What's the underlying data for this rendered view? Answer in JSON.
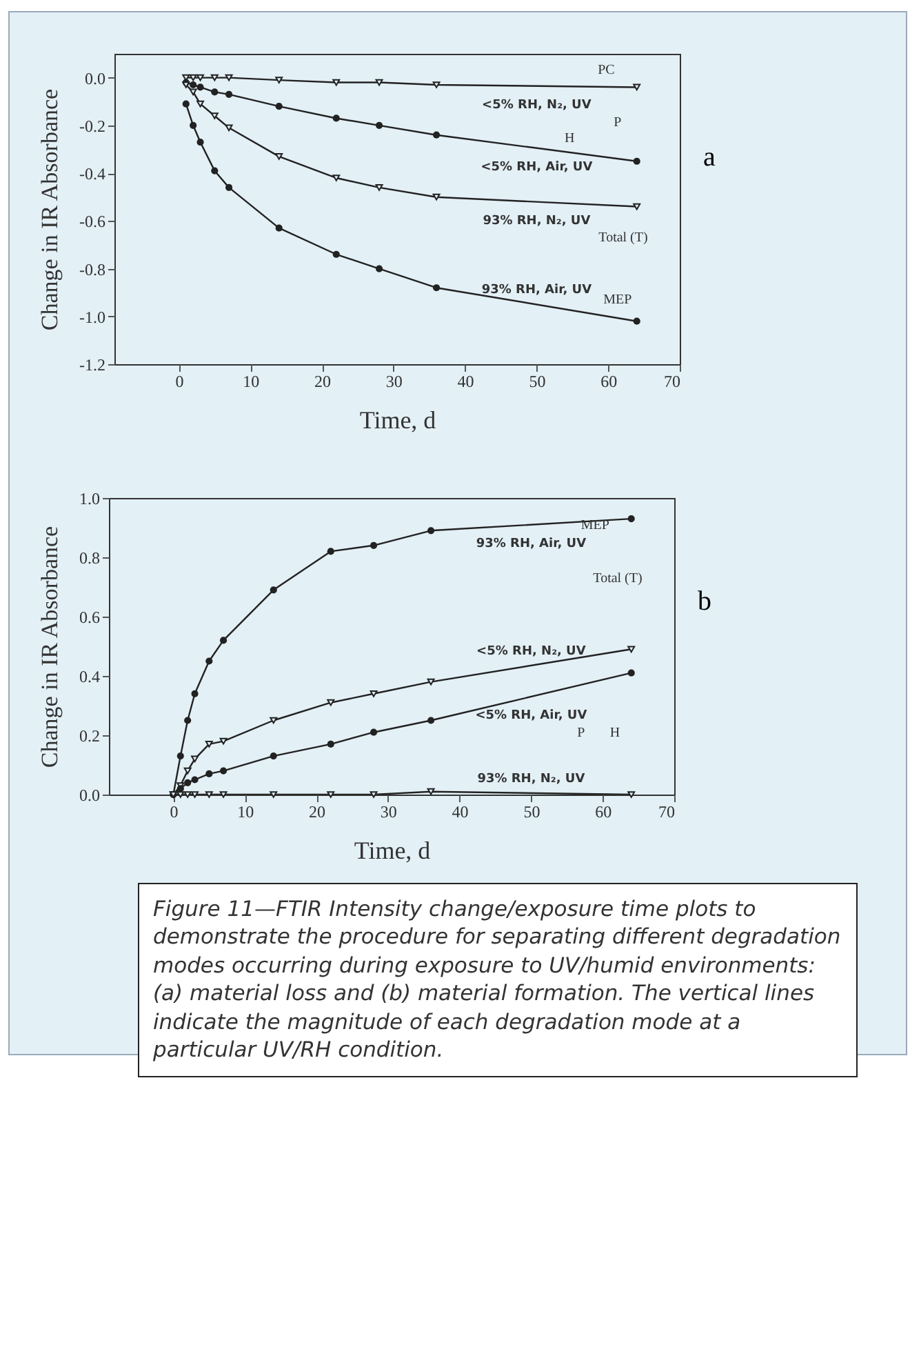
{
  "chart_data": [
    {
      "type": "line",
      "xlabel": "Time, d",
      "ylabel": "Change in IR Absorbance",
      "xlim": [
        -9,
        70
      ],
      "ylim": [
        -1.2,
        0.1
      ],
      "xticks": [
        0,
        10,
        20,
        30,
        40,
        50,
        60,
        70
      ],
      "yticks": [
        {
          "value": 0,
          "label": "0.0"
        },
        {
          "value": -0.2,
          "label": "-0.2"
        },
        {
          "value": -0.4,
          "label": "-0.4"
        },
        {
          "value": -0.6,
          "label": "-0.6"
        },
        {
          "value": -0.8,
          "label": "-0.8"
        },
        {
          "value": -1,
          "label": "-1.0"
        },
        {
          "value": -1.2,
          "label": "-1.2"
        }
      ],
      "x": [
        1,
        2,
        3,
        5,
        7,
        14,
        22,
        28,
        36,
        64
      ],
      "series": [
        {
          "name": "<5% RH, N₂, UV",
          "color": "#222222",
          "marker": "triangle",
          "values": [
            0,
            0,
            0,
            0,
            0,
            -0.01,
            -0.02,
            -0.02,
            -0.03,
            -0.04
          ]
        },
        {
          "name": "<5% RH, Air, UV",
          "color": "#222222",
          "marker": "circle",
          "values": [
            -0.02,
            -0.03,
            -0.04,
            -0.06,
            -0.07,
            -0.12,
            -0.17,
            -0.2,
            -0.24,
            -0.35
          ]
        },
        {
          "name": "93% RH, N₂, UV",
          "color": "#222222",
          "marker": "triangle",
          "values": [
            -0.03,
            -0.06,
            -0.11,
            -0.16,
            -0.21,
            -0.33,
            -0.42,
            -0.46,
            -0.5,
            -0.54
          ]
        },
        {
          "name": "93% RH, Air, UV",
          "color": "#222222",
          "marker": "circle",
          "values": [
            -0.11,
            -0.2,
            -0.27,
            -0.39,
            -0.46,
            -0.63,
            -0.74,
            -0.8,
            -0.88,
            -1.02
          ]
        }
      ],
      "annotations": [
        "a",
        "PC",
        "P",
        "H",
        "Total (T)",
        "MEP"
      ]
    },
    {
      "type": "line",
      "xlabel": "Time, d",
      "ylabel": "Change in IR Absorbance",
      "xlim": [
        -9,
        70
      ],
      "ylim": [
        0,
        1
      ],
      "xticks": [
        0,
        10,
        20,
        30,
        40,
        50,
        60,
        70
      ],
      "yticks": [
        {
          "value": 0,
          "label": "0.0"
        },
        {
          "value": 0.2,
          "label": "0.2"
        },
        {
          "value": 0.4,
          "label": "0.4"
        },
        {
          "value": 0.6,
          "label": "0.6"
        },
        {
          "value": 0.8,
          "label": "0.8"
        },
        {
          "value": 1,
          "label": "1.0"
        }
      ],
      "x": [
        0,
        1,
        2,
        3,
        5,
        7,
        14,
        22,
        28,
        36,
        64
      ],
      "series": [
        {
          "name": "93% RH, Air, UV",
          "color": "#222222",
          "marker": "circle",
          "values": [
            0,
            0.13,
            0.25,
            0.34,
            0.45,
            0.52,
            0.69,
            0.82,
            0.84,
            0.89,
            0.93
          ]
        },
        {
          "name": "<5% RH, N₂, UV",
          "color": "#222222",
          "marker": "triangle",
          "values": [
            0,
            0.03,
            0.08,
            0.12,
            0.17,
            0.18,
            0.25,
            0.31,
            0.34,
            0.38,
            0.49
          ]
        },
        {
          "name": "<5% RH, Air, UV",
          "color": "#222222",
          "marker": "circle",
          "values": [
            0,
            0.02,
            0.04,
            0.05,
            0.07,
            0.08,
            0.13,
            0.17,
            0.21,
            0.25,
            0.41
          ]
        },
        {
          "name": "93% RH, N₂, UV",
          "color": "#222222",
          "marker": "triangle",
          "values": [
            0,
            0,
            0,
            0,
            0,
            0,
            0,
            0,
            0,
            0.01,
            0
          ]
        }
      ],
      "annotations": [
        "b",
        "MEP",
        "Total (T)",
        "P",
        "H",
        "Figure 11—FTIR Intensity change/exposure time plots to demonstrate the procedure for separating different degradation modes occurring during exposure to UV/humid environments: (a) material loss and (b) material formation. The vertical lines indicate the magnitude of each degradation mode at a particular UV/RH condition."
      ]
    }
  ]
}
